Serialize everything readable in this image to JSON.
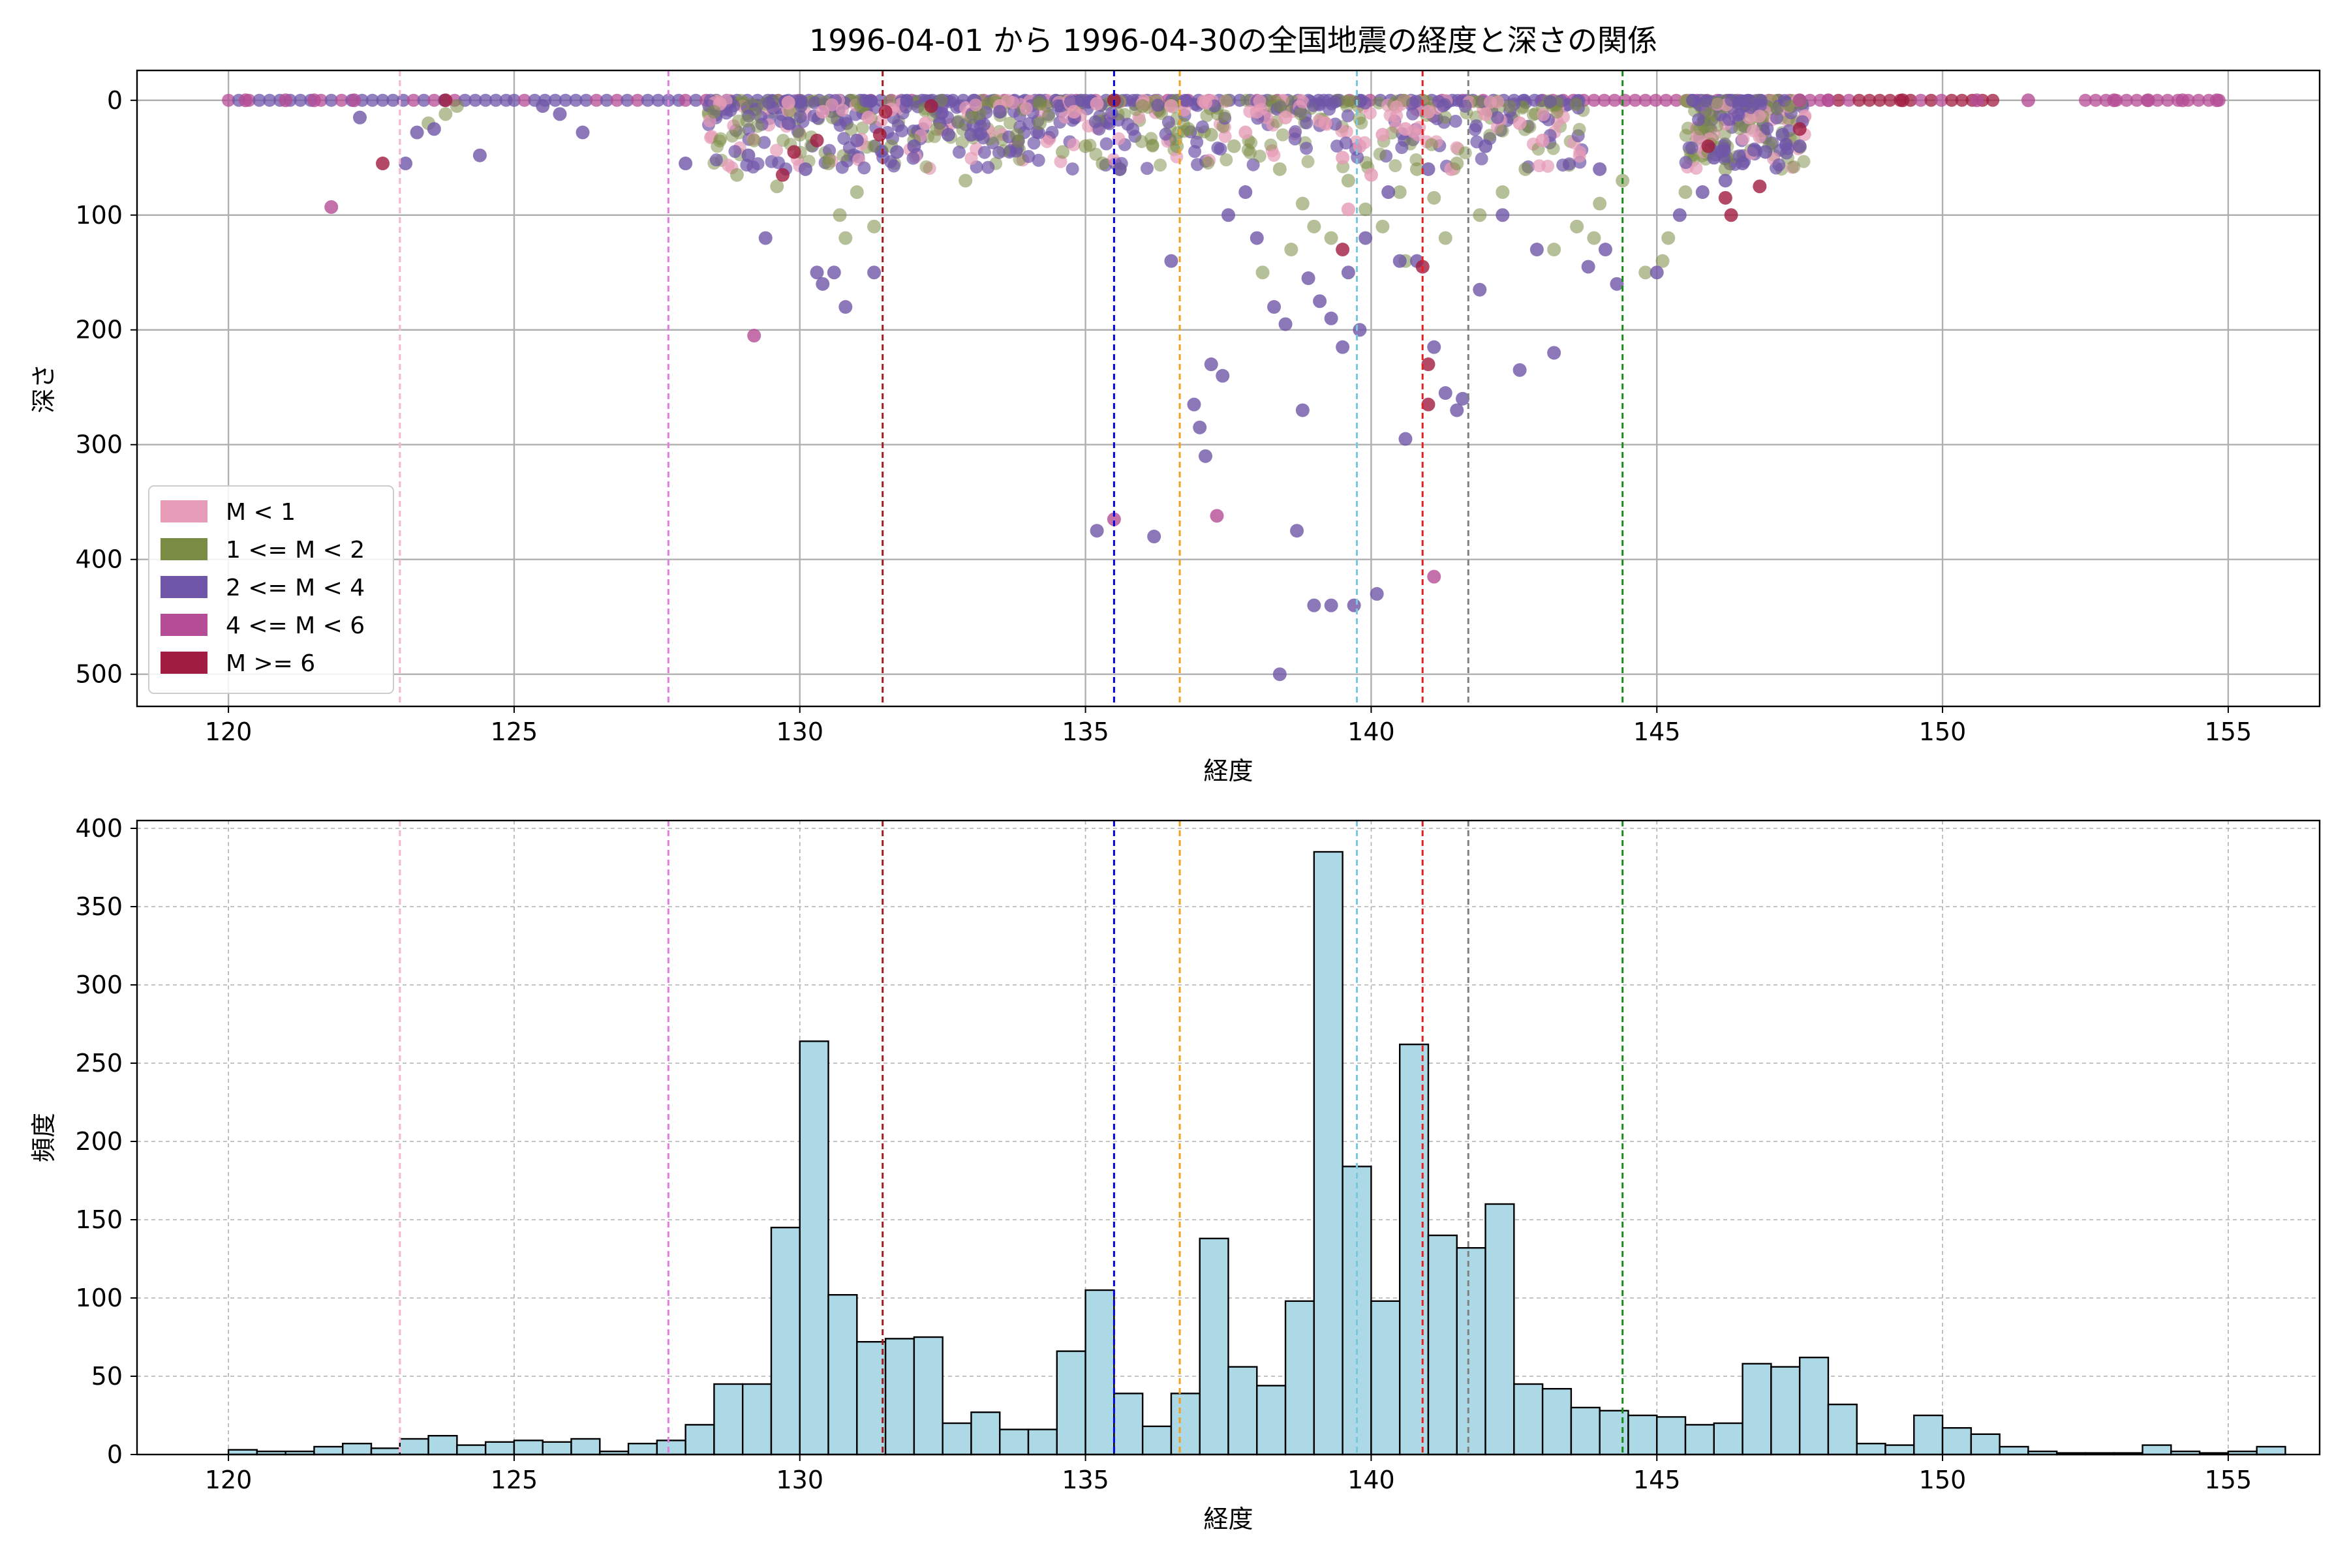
{
  "figure": {
    "title": "1996-04-01 から 1996-04-30の全国地震の経度と深さの関係"
  },
  "colors": {
    "M<1": "#e69bb7",
    "1<=M<2": "#7a8c44",
    "2<=M<4": "#6f56a8",
    "4<=M<6": "#b44c96",
    "M>=6": "#a01c40",
    "hist_fill": "#add8e6",
    "hist_edge": "#000000",
    "grid": "#b0b0b0"
  },
  "vlines": [
    {
      "x": 123.0,
      "color": "#f7b6cf"
    },
    {
      "x": 127.7,
      "color": "#e37ee0"
    },
    {
      "x": 131.45,
      "color": "#a01c1c"
    },
    {
      "x": 135.5,
      "color": "#0000dd"
    },
    {
      "x": 136.65,
      "color": "#f0a020"
    },
    {
      "x": 139.75,
      "color": "#78c8e0"
    },
    {
      "x": 140.9,
      "color": "#e62020"
    },
    {
      "x": 141.7,
      "color": "#808080"
    },
    {
      "x": 144.4,
      "color": "#1a8a1a"
    }
  ],
  "chart_data": [
    {
      "type": "scatter",
      "xlabel": "経度",
      "ylabel": "深さ",
      "xlim": [
        118.4,
        156.6
      ],
      "ylim": [
        528,
        -26
      ],
      "y_inverted": true,
      "xticks": [
        120,
        125,
        130,
        135,
        140,
        145,
        150,
        155
      ],
      "yticks": [
        0,
        100,
        200,
        300,
        400,
        500
      ],
      "grid": true,
      "legend_position": "lower-left",
      "legend": [
        "M < 1",
        "1 <= M < 2",
        "2 <= M < 4",
        "4 <= M < 6",
        "M >= 6"
      ],
      "series": [
        {
          "name": "M < 1",
          "points": [
            [
              131.6,
              8
            ],
            [
              132.2,
              20
            ],
            [
              133.5,
              5
            ],
            [
              134.8,
              10
            ],
            [
              136.0,
              3
            ],
            [
              137.1,
              2
            ],
            [
              137.8,
              28
            ],
            [
              138.5,
              15
            ],
            [
              139.2,
              20
            ],
            [
              139.5,
              50
            ],
            [
              139.8,
              40
            ],
            [
              140.2,
              30
            ],
            [
              140.6,
              25
            ],
            [
              141.0,
              10
            ],
            [
              141.4,
              60
            ],
            [
              142.0,
              12
            ],
            [
              142.6,
              20
            ],
            [
              143.0,
              35
            ],
            [
              130.4,
              10
            ],
            [
              129.8,
              2
            ],
            [
              128.6,
              3
            ],
            [
              131.2,
              15
            ],
            [
              135.2,
              3
            ],
            [
              136.5,
              5
            ],
            [
              138.0,
              10
            ],
            [
              140.0,
              65
            ],
            [
              139.6,
              95
            ]
          ]
        },
        {
          "name": "1 <= M < 2",
          "points": [
            [
              123.5,
              20
            ],
            [
              123.8,
              12
            ],
            [
              124.0,
              5
            ],
            [
              128.5,
              10
            ],
            [
              129.2,
              35
            ],
            [
              130.0,
              30
            ],
            [
              130.5,
              55
            ],
            [
              130.7,
              100
            ],
            [
              130.8,
              120
            ],
            [
              131.0,
              80
            ],
            [
              131.3,
              110
            ],
            [
              131.6,
              40
            ],
            [
              132.0,
              35
            ],
            [
              132.4,
              25
            ],
            [
              133.0,
              15
            ],
            [
              133.8,
              30
            ],
            [
              134.2,
              20
            ],
            [
              135.0,
              40
            ],
            [
              135.3,
              55
            ],
            [
              135.6,
              60
            ],
            [
              136.0,
              5
            ],
            [
              136.8,
              25
            ],
            [
              137.2,
              30
            ],
            [
              137.6,
              40
            ],
            [
              138.1,
              150
            ],
            [
              138.4,
              60
            ],
            [
              138.8,
              90
            ],
            [
              139.0,
              110
            ],
            [
              139.3,
              120
            ],
            [
              139.6,
              70
            ],
            [
              139.9,
              95
            ],
            [
              140.2,
              110
            ],
            [
              140.5,
              80
            ],
            [
              140.8,
              60
            ],
            [
              141.1,
              85
            ],
            [
              141.5,
              55
            ],
            [
              141.9,
              100
            ],
            [
              142.3,
              80
            ],
            [
              142.7,
              60
            ],
            [
              143.2,
              130
            ],
            [
              143.6,
              110
            ],
            [
              144.0,
              90
            ],
            [
              144.4,
              70
            ],
            [
              144.8,
              150
            ],
            [
              145.2,
              120
            ],
            [
              145.5,
              80
            ],
            [
              145.9,
              45
            ],
            [
              146.2,
              60
            ],
            [
              128.9,
              65
            ],
            [
              129.6,
              75
            ],
            [
              132.9,
              70
            ],
            [
              134.6,
              45
            ],
            [
              136.6,
              40
            ],
            [
              138.6,
              130
            ],
            [
              143.9,
              120
            ],
            [
              145.1,
              140
            ],
            [
              141.3,
              120
            ],
            [
              140.6,
              140
            ]
          ]
        },
        {
          "name": "2 <= M < 4",
          "points": [
            [
              122.3,
              15
            ],
            [
              123.1,
              55
            ],
            [
              123.3,
              28
            ],
            [
              123.6,
              25
            ],
            [
              124.4,
              48
            ],
            [
              125.5,
              5
            ],
            [
              125.8,
              12
            ],
            [
              126.2,
              28
            ],
            [
              128.0,
              55
            ],
            [
              129.1,
              48
            ],
            [
              129.4,
              120
            ],
            [
              129.8,
              20
            ],
            [
              130.1,
              60
            ],
            [
              130.3,
              150
            ],
            [
              130.4,
              160
            ],
            [
              130.6,
              150
            ],
            [
              130.8,
              180
            ],
            [
              131.0,
              35
            ],
            [
              131.3,
              150
            ],
            [
              132.0,
              40
            ],
            [
              132.6,
              30
            ],
            [
              133.5,
              10
            ],
            [
              135.2,
              375
            ],
            [
              135.6,
              60
            ],
            [
              136.2,
              380
            ],
            [
              136.9,
              265
            ],
            [
              137.0,
              285
            ],
            [
              137.2,
              230
            ],
            [
              137.4,
              240
            ],
            [
              137.5,
              100
            ],
            [
              137.8,
              80
            ],
            [
              138.0,
              120
            ],
            [
              138.3,
              180
            ],
            [
              138.5,
              195
            ],
            [
              138.7,
              375
            ],
            [
              138.8,
              270
            ],
            [
              138.9,
              155
            ],
            [
              139.0,
              440
            ],
            [
              139.1,
              175
            ],
            [
              139.3,
              190
            ],
            [
              139.5,
              215
            ],
            [
              139.6,
              150
            ],
            [
              139.8,
              200
            ],
            [
              139.9,
              120
            ],
            [
              140.1,
              430
            ],
            [
              140.3,
              80
            ],
            [
              140.5,
              140
            ],
            [
              140.6,
              295
            ],
            [
              140.8,
              140
            ],
            [
              141.1,
              215
            ],
            [
              141.3,
              255
            ],
            [
              141.5,
              270
            ],
            [
              141.6,
              260
            ],
            [
              141.9,
              165
            ],
            [
              142.3,
              100
            ],
            [
              142.6,
              235
            ],
            [
              142.9,
              130
            ],
            [
              143.2,
              220
            ],
            [
              143.8,
              145
            ],
            [
              144.1,
              130
            ],
            [
              144.3,
              160
            ],
            [
              145.0,
              150
            ],
            [
              145.4,
              100
            ],
            [
              145.8,
              80
            ],
            [
              146.2,
              70
            ],
            [
              146.5,
              55
            ],
            [
              146.9,
              45
            ],
            [
              147.2,
              30
            ],
            [
              147.5,
              40
            ],
            [
              138.4,
              500
            ],
            [
              139.3,
              440
            ],
            [
              139.7,
              440
            ],
            [
              137.1,
              310
            ],
            [
              136.5,
              140
            ],
            [
              133.0,
              30
            ],
            [
              131.7,
              45
            ],
            [
              144.0,
              60
            ],
            [
              146.0,
              50
            ],
            [
              142.0,
              40
            ],
            [
              141.0,
              60
            ]
          ]
        },
        {
          "name": "4 <= M < 6",
          "points": [
            [
              120.3,
              0
            ],
            [
              121.0,
              0
            ],
            [
              121.5,
              0
            ],
            [
              121.8,
              93
            ],
            [
              122.2,
              0
            ],
            [
              129.2,
              205
            ],
            [
              135.5,
              365
            ],
            [
              137.3,
              362
            ],
            [
              141.1,
              415
            ],
            [
              153.0,
              0
            ],
            [
              153.6,
              0
            ],
            [
              154.2,
              0
            ],
            [
              154.8,
              0
            ],
            [
              150.6,
              0
            ],
            [
              151.5,
              0
            ],
            [
              148.0,
              0
            ],
            [
              147.5,
              0
            ]
          ]
        },
        {
          "name": "M >= 6",
          "points": [
            [
              122.7,
              55
            ],
            [
              123.8,
              0
            ],
            [
              129.7,
              65
            ],
            [
              129.9,
              45
            ],
            [
              130.3,
              35
            ],
            [
              131.4,
              30
            ],
            [
              131.5,
              10
            ],
            [
              132.3,
              5
            ],
            [
              135.5,
              0
            ],
            [
              139.5,
              130
            ],
            [
              140.9,
              145
            ],
            [
              141.0,
              230
            ],
            [
              141.0,
              265
            ],
            [
              145.9,
              40
            ],
            [
              146.2,
              85
            ],
            [
              146.3,
              100
            ],
            [
              146.8,
              75
            ],
            [
              147.5,
              25
            ],
            [
              149.3,
              0
            ]
          ]
        }
      ]
    },
    {
      "type": "bar",
      "subtype": "histogram",
      "xlabel": "経度",
      "ylabel": "頻度",
      "xlim": [
        118.4,
        156.6
      ],
      "ylim": [
        0,
        405
      ],
      "xticks": [
        120,
        125,
        130,
        135,
        140,
        145,
        150,
        155
      ],
      "yticks": [
        0,
        50,
        100,
        150,
        200,
        250,
        300,
        350,
        400
      ],
      "grid": true,
      "bin_start": 120.0,
      "bin_width": 0.5,
      "values": [
        3,
        2,
        2,
        5,
        7,
        4,
        10,
        12,
        6,
        8,
        9,
        8,
        10,
        2,
        7,
        9,
        19,
        45,
        45,
        145,
        264,
        102,
        72,
        74,
        75,
        20,
        27,
        16,
        16,
        66,
        105,
        39,
        18,
        39,
        138,
        56,
        44,
        98,
        385,
        184,
        98,
        262,
        140,
        132,
        160,
        45,
        42,
        30,
        28,
        25,
        24,
        19,
        20,
        58,
        56,
        62,
        32,
        7,
        6,
        25,
        17,
        13,
        5,
        2,
        1,
        1,
        1,
        6,
        2,
        1,
        2,
        5
      ]
    }
  ]
}
